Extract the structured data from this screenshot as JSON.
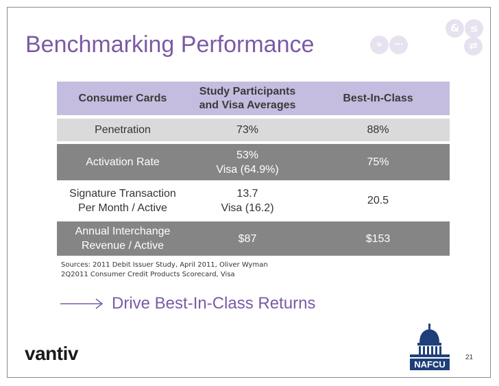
{
  "slide": {
    "title": "Benchmarking Performance",
    "page_number": "21"
  },
  "deco_icons": [
    "ampersand-icon",
    "less-equal-icon",
    "double-chevron-icon",
    "share-icon",
    "swap-arrows-icon"
  ],
  "table": {
    "headers": [
      "Consumer Cards",
      "Study Participants and Visa Averages",
      "Best-In-Class"
    ],
    "header_lines": {
      "col2_line1": "Study Participants",
      "col2_line2": "and Visa Averages"
    },
    "rows": [
      {
        "label": [
          "Penetration"
        ],
        "participants": [
          "73%"
        ],
        "best": "88%"
      },
      {
        "label": [
          "Activation Rate"
        ],
        "participants": [
          "53%",
          "Visa (64.9%)"
        ],
        "best": "75%"
      },
      {
        "label": [
          "Signature Transaction",
          "Per Month / Active"
        ],
        "participants": [
          "13.7",
          "Visa (16.2)"
        ],
        "best": "20.5"
      },
      {
        "label": [
          "Annual Interchange",
          "Revenue / Active"
        ],
        "participants": [
          "$87"
        ],
        "best": "$153"
      }
    ]
  },
  "sources": [
    "Sources: 2011 Debit Issuer Study, April 2011, Oliver Wyman",
    "2Q2011 Consumer Credit Products Scorecard,  Visa"
  ],
  "callout": "Drive Best-In-Class Returns",
  "logos": {
    "vantiv": "vantiv",
    "nafcu": "NAFCU"
  },
  "colors": {
    "accent_purple": "#7b5aa6",
    "header_lavender": "#c5bddf",
    "row_gray_dark": "#858585",
    "row_gray_light": "#dadada"
  }
}
